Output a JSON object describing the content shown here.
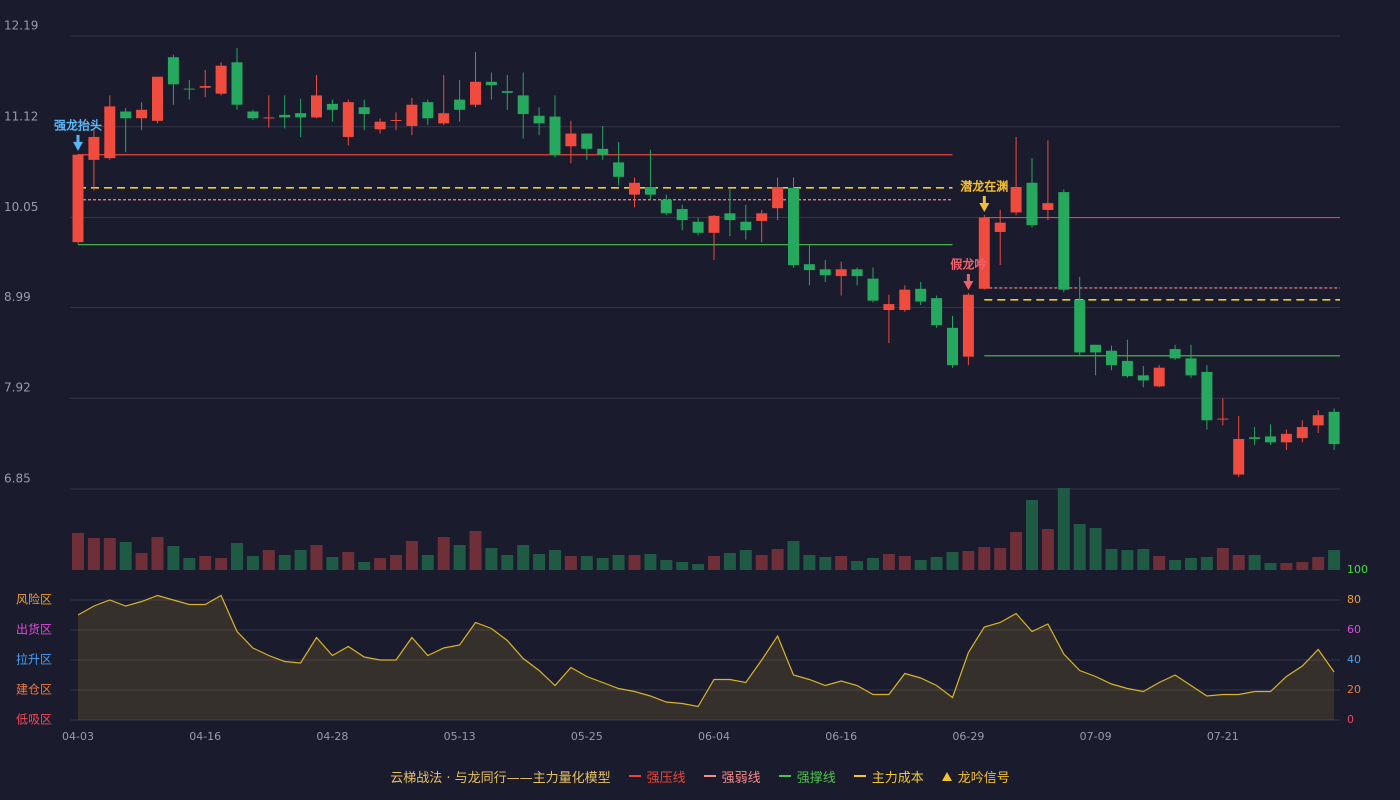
{
  "chart_data": [
    {
      "type": "candlestick",
      "categories": [
        "04-03",
        null,
        null,
        null,
        null,
        null,
        null,
        null,
        "04-16",
        null,
        null,
        null,
        null,
        null,
        null,
        null,
        "04-28",
        null,
        null,
        null,
        null,
        null,
        null,
        null,
        "05-13",
        null,
        null,
        null,
        null,
        null,
        null,
        null,
        "05-25",
        null,
        null,
        null,
        null,
        null,
        null,
        null,
        "06-04",
        null,
        null,
        null,
        null,
        null,
        null,
        null,
        "06-16",
        null,
        null,
        null,
        null,
        null,
        null,
        null,
        "06-29",
        null,
        null,
        null,
        null,
        null,
        null,
        null,
        "07-09",
        null,
        null,
        null,
        null,
        null,
        null,
        null,
        "07-21",
        null,
        null,
        null,
        null,
        null,
        null,
        null
      ],
      "open": [
        9.76,
        10.73,
        10.75,
        11.3,
        11.22,
        11.19,
        11.94,
        11.57,
        11.58,
        11.51,
        11.88,
        11.3,
        11.22,
        11.26,
        11.28,
        11.23,
        11.39,
        11.0,
        11.35,
        11.09,
        11.19,
        11.13,
        11.41,
        11.16,
        11.44,
        11.38,
        11.65,
        11.54,
        11.49,
        11.25,
        11.24,
        10.89,
        11.04,
        10.86,
        10.7,
        10.32,
        10.41,
        10.26,
        10.15,
        10.0,
        9.87,
        10.1,
        10.0,
        10.01,
        10.16,
        10.4,
        9.5,
        9.44,
        9.36,
        9.44,
        9.33,
        8.96,
        8.96,
        9.21,
        9.1,
        8.75,
        8.41,
        9.21,
        9.88,
        10.11,
        10.46,
        10.14,
        10.35,
        9.08,
        8.55,
        8.48,
        8.36,
        8.19,
        8.06,
        8.5,
        8.39,
        8.23,
        7.67,
        7.02,
        7.46,
        7.47,
        7.4,
        7.45,
        7.6,
        7.76
      ],
      "high": [
        10.8,
        11.08,
        11.49,
        11.34,
        11.41,
        11.71,
        11.97,
        11.67,
        11.79,
        11.88,
        12.05,
        11.32,
        11.49,
        11.49,
        11.45,
        11.73,
        11.44,
        11.44,
        11.44,
        11.22,
        11.29,
        11.46,
        11.44,
        11.73,
        11.67,
        12.0,
        11.76,
        11.73,
        11.76,
        11.35,
        11.49,
        11.19,
        11.04,
        11.13,
        10.94,
        10.52,
        10.85,
        10.32,
        10.2,
        10.05,
        10.08,
        10.4,
        10.2,
        10.14,
        10.52,
        10.52,
        9.73,
        9.55,
        9.53,
        9.46,
        9.46,
        9.14,
        9.25,
        9.29,
        9.13,
        8.89,
        9.16,
        10.08,
        10.14,
        11.0,
        10.75,
        10.96,
        10.38,
        9.35,
        8.55,
        8.54,
        8.61,
        8.3,
        8.31,
        8.55,
        8.55,
        8.31,
        7.92,
        7.71,
        7.58,
        7.61,
        7.55,
        7.66,
        7.78,
        7.8
      ],
      "low": [
        9.74,
        10.37,
        10.73,
        10.82,
        11.08,
        11.16,
        11.38,
        11.44,
        11.47,
        11.49,
        11.32,
        11.2,
        11.11,
        11.1,
        11.0,
        11.22,
        11.18,
        10.9,
        11.08,
        11.04,
        11.08,
        11.02,
        11.14,
        11.14,
        11.18,
        11.35,
        11.44,
        11.32,
        10.98,
        11.02,
        10.76,
        10.69,
        10.73,
        10.73,
        10.43,
        10.17,
        10.26,
        10.08,
        9.9,
        9.84,
        9.55,
        9.83,
        9.79,
        9.76,
        10.02,
        9.46,
        9.25,
        9.29,
        9.13,
        9.25,
        9.05,
        8.57,
        8.94,
        9.02,
        8.75,
        8.28,
        8.31,
        9.2,
        9.49,
        10.08,
        9.93,
        10.02,
        9.17,
        8.43,
        8.19,
        8.25,
        8.16,
        8.05,
        8.05,
        8.37,
        8.16,
        7.55,
        7.6,
        6.99,
        7.37,
        7.37,
        7.31,
        7.4,
        7.51,
        7.31
      ],
      "close": [
        10.79,
        11.0,
        11.36,
        11.22,
        11.32,
        11.71,
        11.62,
        11.56,
        11.6,
        11.84,
        11.38,
        11.22,
        11.23,
        11.23,
        11.23,
        11.49,
        11.32,
        11.41,
        11.27,
        11.18,
        11.2,
        11.38,
        11.22,
        11.28,
        11.32,
        11.65,
        11.61,
        11.52,
        11.27,
        11.16,
        10.79,
        11.04,
        10.86,
        10.79,
        10.53,
        10.46,
        10.32,
        10.1,
        10.02,
        9.87,
        10.07,
        10.02,
        9.9,
        10.1,
        10.41,
        9.49,
        9.43,
        9.37,
        9.44,
        9.36,
        9.07,
        9.03,
        9.2,
        9.06,
        8.78,
        8.31,
        9.14,
        10.05,
        9.99,
        10.41,
        9.96,
        10.22,
        9.2,
        8.46,
        8.46,
        8.31,
        8.18,
        8.13,
        8.28,
        8.39,
        8.19,
        7.66,
        7.68,
        7.44,
        7.44,
        7.4,
        7.5,
        7.58,
        7.72,
        7.38
      ],
      "up_color": "#ef4b3e",
      "down_color": "#26a85e",
      "ylim": [
        6.85,
        12.19
      ],
      "yticks": [
        6.85,
        7.92,
        8.99,
        10.05,
        11.12,
        12.19
      ],
      "grid": true,
      "levels": [
        {
          "name": "强压线",
          "color": "#e8463c",
          "style": "solid",
          "segments": [
            {
              "value": 10.79,
              "start": 0,
              "end": 55
            },
            {
              "value": 10.05,
              "start": 57,
              "end": 79
            }
          ]
        },
        {
          "name": "强弱线",
          "color": "#f48a8a",
          "style": "dotted",
          "segments": [
            {
              "value": 10.26,
              "start": 0,
              "end": 55
            },
            {
              "value": 9.22,
              "start": 57,
              "end": 79
            }
          ]
        },
        {
          "name": "强撑线",
          "color": "#4cc34c",
          "style": "solid",
          "segments": [
            {
              "value": 9.73,
              "start": 0,
              "end": 55
            },
            {
              "value": 8.42,
              "start": 57,
              "end": 79
            }
          ]
        },
        {
          "name": "主力成本",
          "color": "#f2c830",
          "style": "dashed",
          "segments": [
            {
              "value": 10.4,
              "start": 0,
              "end": 55
            },
            {
              "value": 9.08,
              "start": 57,
              "end": 79
            }
          ]
        }
      ],
      "annotations": [
        {
          "text": "强龙抬头",
          "index": 0,
          "color": "#5ab6f5"
        },
        {
          "text": "假龙吟",
          "index": 56,
          "color": "#f0606a"
        },
        {
          "text": "潜龙在渊",
          "index": 57,
          "color": "#f5c030"
        }
      ],
      "signal": {
        "name": "龙吟信号",
        "color": "#f5c030"
      }
    },
    {
      "type": "bar",
      "values": [
        37,
        32,
        32,
        28,
        17,
        33,
        24,
        12,
        14,
        12,
        27,
        14,
        20,
        15,
        20,
        25,
        13,
        18,
        8,
        12,
        15,
        29,
        15,
        33,
        25,
        39,
        22,
        15,
        25,
        16,
        20,
        14,
        14,
        12,
        15,
        15,
        16,
        10,
        8,
        6,
        14,
        17,
        20,
        15,
        21,
        29,
        15,
        13,
        14,
        9,
        12,
        16,
        14,
        10,
        13,
        18,
        19,
        23,
        22,
        38,
        70,
        41,
        82,
        46,
        42,
        21,
        20,
        21,
        14,
        10,
        12,
        13,
        22,
        15,
        15,
        7,
        7,
        8,
        13,
        20
      ],
      "up_color": "#6e2f38",
      "down_color": "#1f5a45"
    },
    {
      "type": "line",
      "values": [
        70,
        76,
        80,
        76,
        79,
        83,
        80,
        77,
        77,
        83,
        59,
        48,
        43,
        39,
        38,
        55,
        43,
        49,
        42,
        40,
        40,
        55,
        43,
        48,
        50,
        65,
        61,
        53,
        41,
        33,
        23,
        35,
        29,
        25,
        21,
        19,
        16,
        12,
        11,
        9,
        27,
        27,
        25,
        40,
        56,
        30,
        27,
        23,
        26,
        23,
        17,
        17,
        31,
        28,
        23,
        15,
        45,
        62,
        65,
        71,
        59,
        64,
        44,
        33,
        29,
        24,
        21,
        19,
        25,
        30,
        23,
        16,
        17,
        17,
        19,
        19,
        29,
        36,
        47,
        32
      ],
      "color": "#d8b428",
      "ylim": [
        0,
        100
      ],
      "yticks": [
        0,
        20,
        40,
        60,
        80,
        100
      ],
      "ytick_colors": [
        "#f04a5a",
        "#f07a40",
        "#4aa0f0",
        "#e04ae0",
        "#f0a030",
        "#40e040"
      ],
      "zones": [
        {
          "label": "风险区",
          "value": 80,
          "color": "#f0a030"
        },
        {
          "label": "出货区",
          "value": 60,
          "color": "#e04ae0"
        },
        {
          "label": "拉升区",
          "value": 40,
          "color": "#4aa0f0"
        },
        {
          "label": "建仓区",
          "value": 20,
          "color": "#f07a40"
        },
        {
          "label": "低吸区",
          "value": 0,
          "color": "#f04a5a"
        }
      ]
    }
  ],
  "footer": {
    "title": "云梯战法 · 与龙同行——主力量化模型",
    "color": "#e8c060"
  }
}
